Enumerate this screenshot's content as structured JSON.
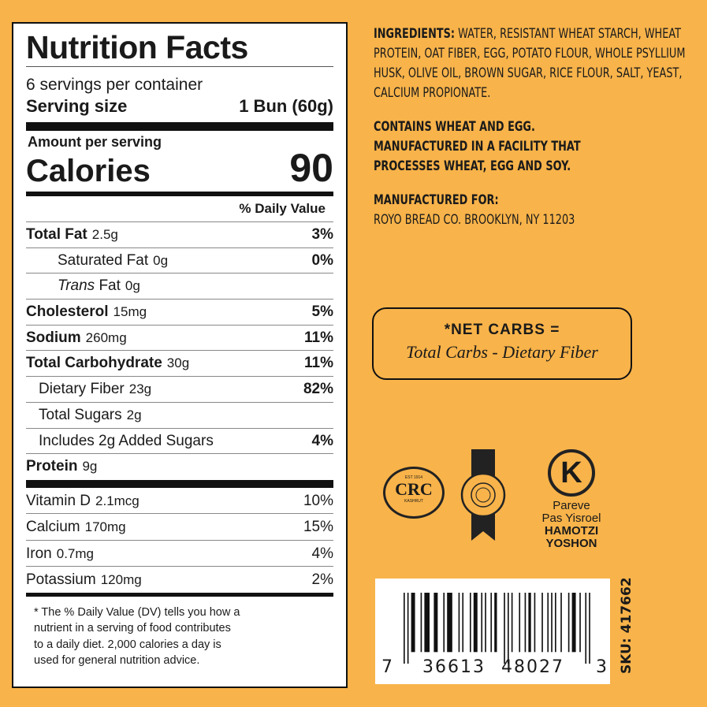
{
  "nutrition": {
    "title": "Nutrition Facts",
    "servings": "6 servings per container",
    "serving_size_label": "Serving size",
    "serving_size_value": "1 Bun (60g)",
    "amount_per_serving": "Amount per serving",
    "calories_label": "Calories",
    "calories_value": "90",
    "dv_header": "% Daily Value",
    "nutrients": [
      {
        "name": "Total Fat",
        "amount": "2.5g",
        "dv": "3%"
      },
      {
        "name": "Saturated Fat",
        "amount": "0g",
        "dv": "0%"
      },
      {
        "name_italic": "Trans",
        "name": "Fat",
        "amount": "0g",
        "dv": ""
      },
      {
        "name": "Cholesterol",
        "amount": "15mg",
        "dv": "5%"
      },
      {
        "name": "Sodium",
        "amount": "260mg",
        "dv": "11%"
      },
      {
        "name": "Total Carbohydrate",
        "amount": "30g",
        "dv": "11%"
      },
      {
        "name": "Dietary Fiber",
        "amount": "23g",
        "dv": "82%"
      },
      {
        "name": "Total Sugars",
        "amount": "2g",
        "dv": ""
      },
      {
        "name": "Includes 2g Added Sugars",
        "amount": "",
        "dv": "4%"
      },
      {
        "name": "Protein",
        "amount": "9g",
        "dv": ""
      }
    ],
    "vitamins": [
      {
        "name": "Vitamin D",
        "amount": "2.1mcg",
        "dv": "10%"
      },
      {
        "name": "Calcium",
        "amount": "170mg",
        "dv": "15%"
      },
      {
        "name": "Iron",
        "amount": "0.7mg",
        "dv": "4%"
      },
      {
        "name": "Potassium",
        "amount": "120mg",
        "dv": "2%"
      }
    ],
    "footnote": [
      "* The % Daily Value (DV) tells you how a",
      "nutrient in a serving of food contributes",
      "to a daily diet. 2,000 calories a day is",
      "used for general nutrition advice."
    ]
  },
  "ingredients": {
    "label": "INGREDIENTS:",
    "text": "WATER, RESISTANT WHEAT STARCH, WHEAT PROTEIN, OAT FIBER, EGG, POTATO FLOUR, WHOLE PSYLLIUM HUSK, OLIVE OIL, BROWN SUGAR, RICE FLOUR, SALT, YEAST, CALCIUM PROPIONATE."
  },
  "allergens": "CONTAINS WHEAT AND EGG. MANUFACTURED IN A FACILITY THAT PROCESSES WHEAT, EGG AND SOY.",
  "manufacturer": {
    "label": "MANUFACTURED FOR:",
    "text": "ROYO BREAD CO. BROOKLYN, NY 11203"
  },
  "net_carbs": {
    "title": "*NET CARBS =",
    "formula": "Total Carbs - Dietary Fiber"
  },
  "kosher": {
    "crc": {
      "top": "EST 1914",
      "main": "CRC",
      "bottom": "KASHRUT"
    },
    "ok_lines": [
      "Pareve",
      "Pas Yisroel",
      "HAMOTZI",
      "YOSHON"
    ]
  },
  "barcode": {
    "first": "7",
    "left": "36613",
    "right": "48027",
    "last": "3"
  },
  "sku": "SKU: 417662",
  "colors": {
    "background": "#F8B34A",
    "text": "#1a1a1a"
  }
}
